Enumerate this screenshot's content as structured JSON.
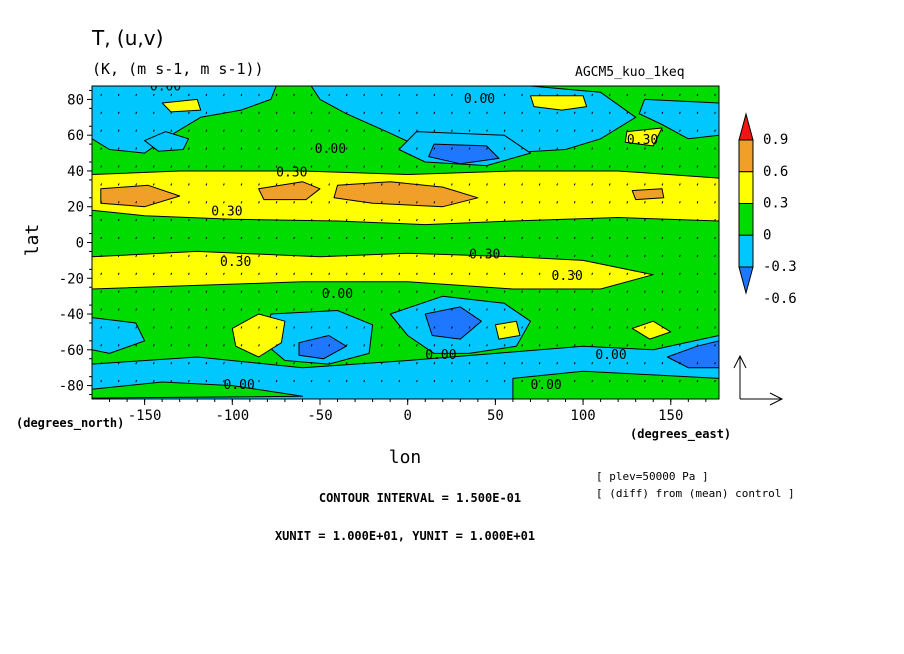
{
  "chart_data": {
    "type": "heatmap",
    "title": "T, (u,v)",
    "subtitle": "(K, (m s-1, m s-1))",
    "experiment": "AGCM5_kuo_1keq",
    "xlabel": "lon",
    "ylabel": "lat",
    "x_unit_label": "(degrees_east)",
    "y_unit_label": "(degrees_north)",
    "xlim": [
      -180,
      177.5
    ],
    "ylim": [
      -87.5,
      87.5
    ],
    "x_ticks": [
      -150,
      -100,
      -50,
      0,
      50,
      100,
      150
    ],
    "x_tick_labels": [
      "-150",
      "-100",
      "-50",
      "0",
      "50",
      "100",
      "150"
    ],
    "y_ticks": [
      -80,
      -60,
      -40,
      -20,
      0,
      20,
      40,
      60,
      80
    ],
    "y_tick_labels": [
      "-80",
      "-60",
      "-40",
      "-20",
      "0",
      "20",
      "40",
      "60",
      "80"
    ],
    "colorbar": {
      "levels": [
        -0.6,
        -0.3,
        0,
        0.3,
        0.6,
        0.9
      ],
      "labels": [
        "-0.6",
        "-0.3",
        "0",
        "0.3",
        "0.6",
        "0.9"
      ],
      "colors": [
        "#1e78ff",
        "#00c8ff",
        "#00dc00",
        "#ffff00",
        "#f0a028",
        "#f01414"
      ]
    },
    "contour_labels": [
      {
        "text": "0.00",
        "lon": -147,
        "lat": 85
      },
      {
        "text": "0.00",
        "lon": 32,
        "lat": 78
      },
      {
        "text": "0.00",
        "lon": -53,
        "lat": 50
      },
      {
        "text": "0.30",
        "lon": 125,
        "lat": 55
      },
      {
        "text": "0.30",
        "lon": -75,
        "lat": 37
      },
      {
        "text": "0.30",
        "lon": -112,
        "lat": 15
      },
      {
        "text": "0.30",
        "lon": -107,
        "lat": -13
      },
      {
        "text": "0.30",
        "lon": 35,
        "lat": -9
      },
      {
        "text": "0.30",
        "lon": 82,
        "lat": -21
      },
      {
        "text": "0.00",
        "lon": -49,
        "lat": -31
      },
      {
        "text": "0.00",
        "lon": 10,
        "lat": -65
      },
      {
        "text": "0.00",
        "lon": 107,
        "lat": -65
      },
      {
        "text": "0.00",
        "lon": -105,
        "lat": -82
      },
      {
        "text": "0.00",
        "lon": 70,
        "lat": -82
      }
    ],
    "regions": [
      {
        "level": 0.0,
        "kind": "box",
        "lon": [
          -180,
          177.5
        ],
        "lat": [
          -87.5,
          87.5
        ]
      },
      {
        "level": -0.3,
        "kind": "poly",
        "pts": [
          [
            -180,
            87.5
          ],
          [
            -75,
            87.5
          ],
          [
            -78,
            80
          ],
          [
            -95,
            74
          ],
          [
            -118,
            70
          ],
          [
            -135,
            60
          ],
          [
            -150,
            50
          ],
          [
            -170,
            52
          ],
          [
            -180,
            58
          ]
        ]
      },
      {
        "level": -0.3,
        "kind": "poly",
        "pts": [
          [
            -55,
            87.5
          ],
          [
            70,
            87.5
          ],
          [
            110,
            84
          ],
          [
            130,
            70
          ],
          [
            110,
            58
          ],
          [
            90,
            52
          ],
          [
            55,
            50
          ],
          [
            35,
            48
          ],
          [
            10,
            52
          ],
          [
            -12,
            62
          ],
          [
            -35,
            72
          ],
          [
            -50,
            80
          ]
        ]
      },
      {
        "level": -0.3,
        "kind": "poly",
        "pts": [
          [
            135,
            80
          ],
          [
            177.5,
            78
          ],
          [
            177.5,
            60
          ],
          [
            160,
            58
          ],
          [
            145,
            66
          ],
          [
            132,
            72
          ]
        ]
      },
      {
        "level": -0.3,
        "kind": "poly",
        "pts": [
          [
            -150,
            57
          ],
          [
            -138,
            62
          ],
          [
            -125,
            58
          ],
          [
            -128,
            52
          ],
          [
            -142,
            51
          ]
        ]
      },
      {
        "level": -0.3,
        "kind": "poly",
        "pts": [
          [
            5,
            62
          ],
          [
            55,
            60
          ],
          [
            70,
            50
          ],
          [
            45,
            43
          ],
          [
            10,
            45
          ],
          [
            -5,
            52
          ]
        ]
      },
      {
        "level": -0.6,
        "kind": "poly",
        "pts": [
          [
            15,
            55
          ],
          [
            45,
            54
          ],
          [
            52,
            47
          ],
          [
            30,
            44
          ],
          [
            12,
            48
          ]
        ]
      },
      {
        "level": 0.3,
        "kind": "poly",
        "pts": [
          [
            70,
            82
          ],
          [
            100,
            82
          ],
          [
            102,
            76
          ],
          [
            88,
            74
          ],
          [
            72,
            76
          ]
        ]
      },
      {
        "level": 0.3,
        "kind": "poly",
        "pts": [
          [
            -140,
            78
          ],
          [
            -120,
            80
          ],
          [
            -118,
            74
          ],
          [
            -135,
            73
          ]
        ]
      },
      {
        "level": 0.3,
        "kind": "poly",
        "pts": [
          [
            125,
            62
          ],
          [
            145,
            64
          ],
          [
            140,
            54
          ],
          [
            124,
            56
          ]
        ]
      },
      {
        "level": 0.3,
        "kind": "poly",
        "pts": [
          [
            -180,
            38
          ],
          [
            -130,
            40
          ],
          [
            -60,
            40
          ],
          [
            0,
            38
          ],
          [
            60,
            40
          ],
          [
            120,
            40
          ],
          [
            177.5,
            36
          ],
          [
            177.5,
            12
          ],
          [
            120,
            14
          ],
          [
            60,
            12
          ],
          [
            10,
            10
          ],
          [
            -40,
            12
          ],
          [
            -100,
            13
          ],
          [
            -150,
            15
          ],
          [
            -180,
            18
          ]
        ]
      },
      {
        "level": 0.3,
        "kind": "poly",
        "pts": [
          [
            -180,
            -8
          ],
          [
            -120,
            -5
          ],
          [
            -50,
            -8
          ],
          [
            0,
            -6
          ],
          [
            60,
            -8
          ],
          [
            100,
            -10
          ],
          [
            140,
            -18
          ],
          [
            110,
            -26
          ],
          [
            60,
            -26
          ],
          [
            0,
            -22
          ],
          [
            -60,
            -22
          ],
          [
            -120,
            -24
          ],
          [
            -180,
            -26
          ]
        ]
      },
      {
        "level": 0.6,
        "kind": "poly",
        "pts": [
          [
            -175,
            30
          ],
          [
            -148,
            32
          ],
          [
            -130,
            26
          ],
          [
            -150,
            20
          ],
          [
            -175,
            22
          ]
        ]
      },
      {
        "level": 0.6,
        "kind": "poly",
        "pts": [
          [
            -85,
            30
          ],
          [
            -60,
            34
          ],
          [
            -50,
            30
          ],
          [
            -58,
            24
          ],
          [
            -82,
            24
          ]
        ]
      },
      {
        "level": 0.6,
        "kind": "poly",
        "pts": [
          [
            -40,
            32
          ],
          [
            -10,
            34
          ],
          [
            20,
            31
          ],
          [
            40,
            25
          ],
          [
            20,
            20
          ],
          [
            -20,
            22
          ],
          [
            -42,
            25
          ]
        ]
      },
      {
        "level": 0.6,
        "kind": "poly",
        "pts": [
          [
            128,
            29
          ],
          [
            145,
            30
          ],
          [
            146,
            25
          ],
          [
            130,
            24
          ]
        ]
      },
      {
        "level": -0.3,
        "kind": "poly",
        "pts": [
          [
            -180,
            -42
          ],
          [
            -155,
            -45
          ],
          [
            -150,
            -55
          ],
          [
            -170,
            -62
          ],
          [
            -180,
            -60
          ]
        ]
      },
      {
        "level": -0.3,
        "kind": "poly",
        "pts": [
          [
            -78,
            -40
          ],
          [
            -40,
            -38
          ],
          [
            -20,
            -46
          ],
          [
            -22,
            -62
          ],
          [
            -45,
            -68
          ],
          [
            -70,
            -66
          ],
          [
            -82,
            -56
          ]
        ]
      },
      {
        "level": -0.6,
        "kind": "poly",
        "pts": [
          [
            -62,
            -56
          ],
          [
            -45,
            -52
          ],
          [
            -35,
            -58
          ],
          [
            -48,
            -65
          ],
          [
            -62,
            -63
          ]
        ]
      },
      {
        "level": -0.3,
        "kind": "poly",
        "pts": [
          [
            -10,
            -40
          ],
          [
            20,
            -30
          ],
          [
            55,
            -34
          ],
          [
            70,
            -44
          ],
          [
            62,
            -58
          ],
          [
            35,
            -62
          ],
          [
            15,
            -62
          ],
          [
            0,
            -52
          ]
        ]
      },
      {
        "level": -0.6,
        "kind": "poly",
        "pts": [
          [
            10,
            -40
          ],
          [
            30,
            -36
          ],
          [
            42,
            -44
          ],
          [
            30,
            -54
          ],
          [
            14,
            -52
          ]
        ]
      },
      {
        "level": -0.3,
        "kind": "poly",
        "pts": [
          [
            -180,
            -68
          ],
          [
            -120,
            -64
          ],
          [
            -60,
            -70
          ],
          [
            0,
            -66
          ],
          [
            50,
            -62
          ],
          [
            100,
            -58
          ],
          [
            140,
            -60
          ],
          [
            177.5,
            -52
          ],
          [
            177.5,
            -87.5
          ],
          [
            -180,
            -87.5
          ]
        ]
      },
      {
        "level": 0.0,
        "kind": "poly",
        "pts": [
          [
            -180,
            -82
          ],
          [
            -140,
            -78
          ],
          [
            -100,
            -80
          ],
          [
            -60,
            -86
          ],
          [
            -180,
            -87
          ]
        ]
      },
      {
        "level": 0.0,
        "kind": "poly",
        "pts": [
          [
            60,
            -76
          ],
          [
            100,
            -72
          ],
          [
            140,
            -74
          ],
          [
            177.5,
            -76
          ],
          [
            177.5,
            -87.5
          ],
          [
            60,
            -87.5
          ]
        ]
      },
      {
        "level": -0.6,
        "kind": "poly",
        "pts": [
          [
            148,
            -64
          ],
          [
            165,
            -58
          ],
          [
            177.5,
            -55
          ],
          [
            177.5,
            -70
          ],
          [
            160,
            -70
          ]
        ]
      },
      {
        "level": 0.3,
        "kind": "poly",
        "pts": [
          [
            -100,
            -48
          ],
          [
            -85,
            -40
          ],
          [
            -70,
            -44
          ],
          [
            -72,
            -56
          ],
          [
            -85,
            -64
          ],
          [
            -98,
            -58
          ]
        ]
      },
      {
        "level": 0.3,
        "kind": "poly",
        "pts": [
          [
            50,
            -46
          ],
          [
            62,
            -44
          ],
          [
            64,
            -52
          ],
          [
            52,
            -54
          ]
        ]
      },
      {
        "level": 0.3,
        "kind": "poly",
        "pts": [
          [
            128,
            -48
          ],
          [
            140,
            -44
          ],
          [
            150,
            -50
          ],
          [
            138,
            -54
          ]
        ]
      }
    ]
  },
  "annotations": {
    "plev": "[ plev=50000 Pa ]",
    "diff": "[ (diff) from (mean) control ]",
    "contour_interval": "CONTOUR INTERVAL = 1.500E-01",
    "units": "XUNIT = 1.000E+01, YUNIT = 1.000E+01"
  }
}
